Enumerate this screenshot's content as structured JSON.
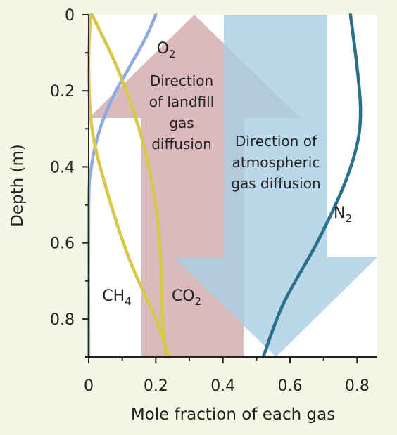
{
  "chart_data": {
    "type": "line",
    "xlabel": "Mole fraction of each gas",
    "ylabel": "Depth (m)",
    "xlim": [
      0,
      0.86
    ],
    "ylim": [
      0,
      0.9
    ],
    "y_inverted": true,
    "x_ticks": [
      "0",
      "0.2",
      "0.4",
      "0.6",
      "0.8"
    ],
    "y_ticks": [
      "0",
      "0.2",
      "0.4",
      "0.6",
      "0.8"
    ],
    "x_tick_values": [
      0,
      0.2,
      0.4,
      0.6,
      0.8
    ],
    "y_tick_values": [
      0,
      0.2,
      0.4,
      0.6,
      0.8
    ],
    "grid": false,
    "series": [
      {
        "name": "O2",
        "label_main": "O",
        "label_sub": "2",
        "color": "#8fabdd",
        "points": [
          [
            0.2,
            0
          ],
          [
            0.17,
            0.06
          ],
          [
            0.12,
            0.14
          ],
          [
            0.07,
            0.22
          ],
          [
            0.03,
            0.31
          ],
          [
            0.008,
            0.4
          ],
          [
            0,
            0.5
          ],
          [
            0,
            0.9
          ]
        ]
      },
      {
        "name": "CH4",
        "label_main": "CH",
        "label_sub": "4",
        "color": "#d8c847",
        "points": [
          [
            0.005,
            0
          ],
          [
            0,
            0.14
          ],
          [
            0.01,
            0.3
          ],
          [
            0.05,
            0.45
          ],
          [
            0.12,
            0.64
          ],
          [
            0.2,
            0.8
          ],
          [
            0.24,
            0.9
          ]
        ]
      },
      {
        "name": "CO2",
        "label_main": "CO",
        "label_sub": "2",
        "color": "#d8c847",
        "points": [
          [
            0.01,
            0
          ],
          [
            0.09,
            0.15
          ],
          [
            0.16,
            0.33
          ],
          [
            0.2,
            0.5
          ],
          [
            0.215,
            0.65
          ],
          [
            0.22,
            0.8
          ],
          [
            0.23,
            0.9
          ]
        ]
      },
      {
        "name": "N2",
        "label_main": "N",
        "label_sub": "2",
        "color": "#2a6f8c",
        "points": [
          [
            0.78,
            0
          ],
          [
            0.8,
            0.14
          ],
          [
            0.81,
            0.25
          ],
          [
            0.8,
            0.34
          ],
          [
            0.76,
            0.45
          ],
          [
            0.68,
            0.6
          ],
          [
            0.58,
            0.76
          ],
          [
            0.52,
            0.9
          ]
        ]
      }
    ],
    "annotations": [
      {
        "id": "landfill",
        "lines": [
          "Direction",
          "of landfill",
          "gas",
          "diffusion"
        ]
      },
      {
        "id": "atmospheric",
        "lines": [
          "Direction of",
          "atmospheric",
          "gas diffusion"
        ]
      }
    ],
    "arrow_colors": {
      "landfill": "#cfa6ab",
      "atmospheric": "#a8cde4"
    }
  }
}
